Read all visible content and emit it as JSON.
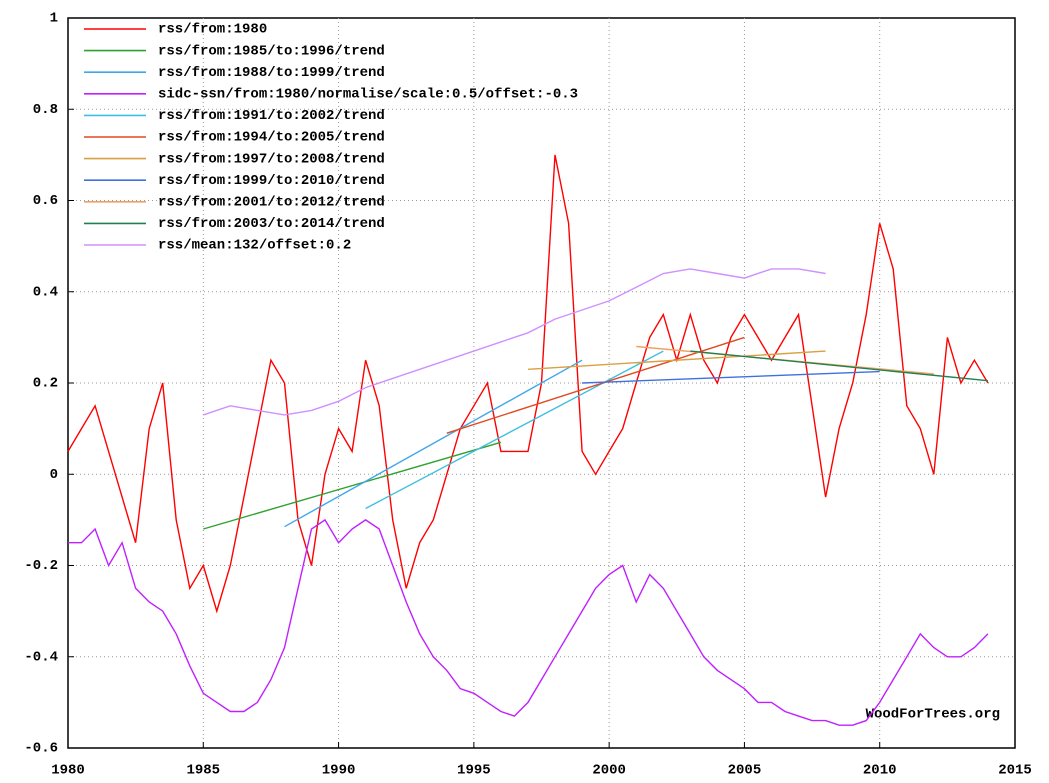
{
  "chart_data": {
    "type": "line",
    "annotation": "WoodForTrees.org",
    "xlim": [
      1980,
      2015
    ],
    "xticks": [
      1980,
      1985,
      1990,
      1995,
      2000,
      2005,
      2010,
      2015
    ],
    "ylim": [
      -0.6,
      1
    ],
    "yticks": [
      -0.6,
      -0.4,
      -0.2,
      0,
      0.2,
      0.4,
      0.6,
      0.8,
      1
    ],
    "grid": true,
    "legend": "upper left",
    "series": [
      {
        "name": "rss/from:1980",
        "color": "#ff0000",
        "x": [
          1980,
          1980.5,
          1981,
          1981.5,
          1982,
          1982.5,
          1983,
          1983.5,
          1984,
          1984.5,
          1985,
          1985.5,
          1986,
          1986.5,
          1987,
          1987.5,
          1988,
          1988.5,
          1989,
          1989.5,
          1990,
          1990.5,
          1991,
          1991.5,
          1992,
          1992.5,
          1993,
          1993.5,
          1994,
          1994.5,
          1995,
          1995.5,
          1996,
          1996.5,
          1997,
          1997.5,
          1998,
          1998.5,
          1999,
          1999.5,
          2000,
          2000.5,
          2001,
          2001.5,
          2002,
          2002.5,
          2003,
          2003.5,
          2004,
          2004.5,
          2005,
          2005.5,
          2006,
          2006.5,
          2007,
          2007.5,
          2008,
          2008.5,
          2009,
          2009.5,
          2010,
          2010.5,
          2011,
          2011.5,
          2012,
          2012.5,
          2013,
          2013.5,
          2014
        ],
        "values": [
          0.05,
          0.1,
          0.15,
          0.05,
          -0.05,
          -0.15,
          0.1,
          0.2,
          -0.1,
          -0.25,
          -0.2,
          -0.3,
          -0.2,
          -0.05,
          0.1,
          0.25,
          0.2,
          -0.1,
          -0.2,
          0.0,
          0.1,
          0.05,
          0.25,
          0.15,
          -0.1,
          -0.25,
          -0.15,
          -0.1,
          0.0,
          0.1,
          0.15,
          0.2,
          0.05,
          0.05,
          0.05,
          0.2,
          0.7,
          0.55,
          0.05,
          0.0,
          0.05,
          0.1,
          0.2,
          0.3,
          0.35,
          0.25,
          0.35,
          0.25,
          0.2,
          0.3,
          0.35,
          0.3,
          0.25,
          0.3,
          0.35,
          0.15,
          -0.05,
          0.1,
          0.2,
          0.35,
          0.55,
          0.45,
          0.15,
          0.1,
          0.0,
          0.3,
          0.2,
          0.25,
          0.2
        ]
      },
      {
        "name": "rss/from:1985/to:1996/trend",
        "color": "#30a030",
        "x": [
          1985,
          1996
        ],
        "values": [
          -0.12,
          0.07
        ]
      },
      {
        "name": "rss/from:1988/to:1999/trend",
        "color": "#40a8e8",
        "x": [
          1988,
          1999
        ],
        "values": [
          -0.115,
          0.25
        ]
      },
      {
        "name": "sidc-ssn/from:1980/normalise/scale:0.5/offset:-0.3",
        "color": "#c020ff",
        "x": [
          1980,
          1980.5,
          1981,
          1981.5,
          1982,
          1982.5,
          1983,
          1983.5,
          1984,
          1984.5,
          1985,
          1985.5,
          1986,
          1986.5,
          1987,
          1987.5,
          1988,
          1988.5,
          1989,
          1989.5,
          1990,
          1990.5,
          1991,
          1991.5,
          1992,
          1992.5,
          1993,
          1993.5,
          1994,
          1994.5,
          1995,
          1995.5,
          1996,
          1996.5,
          1997,
          1997.5,
          1998,
          1998.5,
          1999,
          1999.5,
          2000,
          2000.5,
          2001,
          2001.5,
          2002,
          2002.5,
          2003,
          2003.5,
          2004,
          2004.5,
          2005,
          2005.5,
          2006,
          2006.5,
          2007,
          2007.5,
          2008,
          2008.5,
          2009,
          2009.5,
          2010,
          2010.5,
          2011,
          2011.5,
          2012,
          2012.5,
          2013,
          2013.5,
          2014
        ],
        "values": [
          -0.15,
          -0.15,
          -0.12,
          -0.2,
          -0.15,
          -0.25,
          -0.28,
          -0.3,
          -0.35,
          -0.42,
          -0.48,
          -0.5,
          -0.52,
          -0.52,
          -0.5,
          -0.45,
          -0.38,
          -0.25,
          -0.12,
          -0.1,
          -0.15,
          -0.12,
          -0.1,
          -0.12,
          -0.2,
          -0.28,
          -0.35,
          -0.4,
          -0.43,
          -0.47,
          -0.48,
          -0.5,
          -0.52,
          -0.53,
          -0.5,
          -0.45,
          -0.4,
          -0.35,
          -0.3,
          -0.25,
          -0.22,
          -0.2,
          -0.28,
          -0.22,
          -0.25,
          -0.3,
          -0.35,
          -0.4,
          -0.43,
          -0.45,
          -0.47,
          -0.5,
          -0.5,
          -0.52,
          -0.53,
          -0.54,
          -0.54,
          -0.55,
          -0.55,
          -0.54,
          -0.5,
          -0.45,
          -0.4,
          -0.35,
          -0.38,
          -0.4,
          -0.4,
          -0.38,
          -0.35
        ]
      },
      {
        "name": "rss/from:1991/to:2002/trend",
        "color": "#40c0e0",
        "x": [
          1991,
          2002
        ],
        "values": [
          -0.075,
          0.27
        ]
      },
      {
        "name": "rss/from:1994/to:2005/trend",
        "color": "#e04a20",
        "x": [
          1994,
          2005
        ],
        "values": [
          0.09,
          0.3
        ]
      },
      {
        "name": "rss/from:1997/to:2008/trend",
        "color": "#d8a040",
        "x": [
          1997,
          2008
        ],
        "values": [
          0.23,
          0.27
        ]
      },
      {
        "name": "rss/from:1999/to:2010/trend",
        "color": "#4070e0",
        "x": [
          1999,
          2010
        ],
        "values": [
          0.2,
          0.225
        ]
      },
      {
        "name": "rss/from:2001/to:2012/trend",
        "color": "#f0a060",
        "x": [
          2001,
          2012
        ],
        "values": [
          0.28,
          0.22
        ]
      },
      {
        "name": "rss/from:2003/to:2014/trend",
        "color": "#208050",
        "x": [
          2003,
          2014
        ],
        "values": [
          0.27,
          0.205
        ]
      },
      {
        "name": "rss/mean:132/offset:0.2",
        "color": "#d090ff",
        "x": [
          1985,
          1986,
          1987,
          1988,
          1989,
          1990,
          1991,
          1992,
          1993,
          1994,
          1995,
          1996,
          1997,
          1998,
          1999,
          2000,
          2001,
          2002,
          2003,
          2004,
          2005,
          2006,
          2007,
          2008
        ],
        "values": [
          0.13,
          0.15,
          0.14,
          0.13,
          0.14,
          0.16,
          0.19,
          0.21,
          0.23,
          0.25,
          0.27,
          0.29,
          0.31,
          0.34,
          0.36,
          0.38,
          0.41,
          0.44,
          0.45,
          0.44,
          0.43,
          0.45,
          0.45,
          0.44
        ]
      }
    ]
  }
}
